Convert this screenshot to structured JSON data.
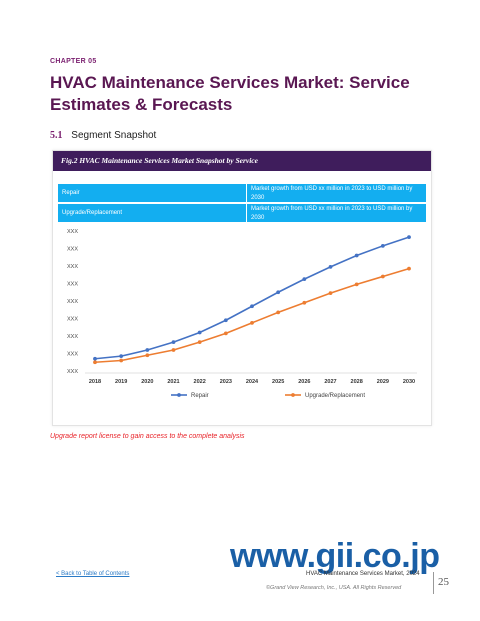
{
  "header": {
    "chapter": "CHAPTER 05",
    "title": "HVAC Maintenance Services Market: Service Estimates & Forecasts"
  },
  "section": {
    "number": "5.1",
    "title": "Segment Snapshot"
  },
  "figure": {
    "caption": "Fig.2 HVAC Maintenance Services Market Snapshot by Service",
    "segments": [
      {
        "name": "Repair",
        "description": "Market growth from USD xx million in 2023 to USD million by 2030"
      },
      {
        "name": "Upgrade/Replacement",
        "description": "Market growth from USD xx million in 2023 to USD million by 2030"
      }
    ]
  },
  "chart_data": {
    "type": "line",
    "x": [
      "2018",
      "2019",
      "2020",
      "2021",
      "2022",
      "2023",
      "2024",
      "2025",
      "2026",
      "2027",
      "2028",
      "2029",
      "2030"
    ],
    "y_tick_labels": [
      "XXX",
      "XXX",
      "XXX",
      "XXX",
      "XXX",
      "XXX",
      "XXX",
      "XXX",
      "XXX"
    ],
    "ylim": [
      0,
      8
    ],
    "grid": false,
    "legend_position": "bottom",
    "series": [
      {
        "name": "Repair",
        "color": "#4472c4",
        "values": [
          0.7,
          0.85,
          1.2,
          1.65,
          2.2,
          2.9,
          3.7,
          4.5,
          5.25,
          5.95,
          6.6,
          7.15,
          7.65
        ]
      },
      {
        "name": "Upgrade/Replacement",
        "color": "#ed7d31",
        "values": [
          0.5,
          0.6,
          0.9,
          1.2,
          1.65,
          2.15,
          2.75,
          3.35,
          3.9,
          4.45,
          4.95,
          5.4,
          5.85
        ]
      }
    ]
  },
  "upgrade_note": "Upgrade report license to gain access to the complete analysis",
  "footer": {
    "back_link": "< Back to Table of Contents",
    "report_title": "HVAC Maintenance Services Market, 2024",
    "copyright": "©Grand View Research, Inc., USA. All Rights Reserved",
    "page_number": "25"
  },
  "watermark": "www.gii.co.jp"
}
